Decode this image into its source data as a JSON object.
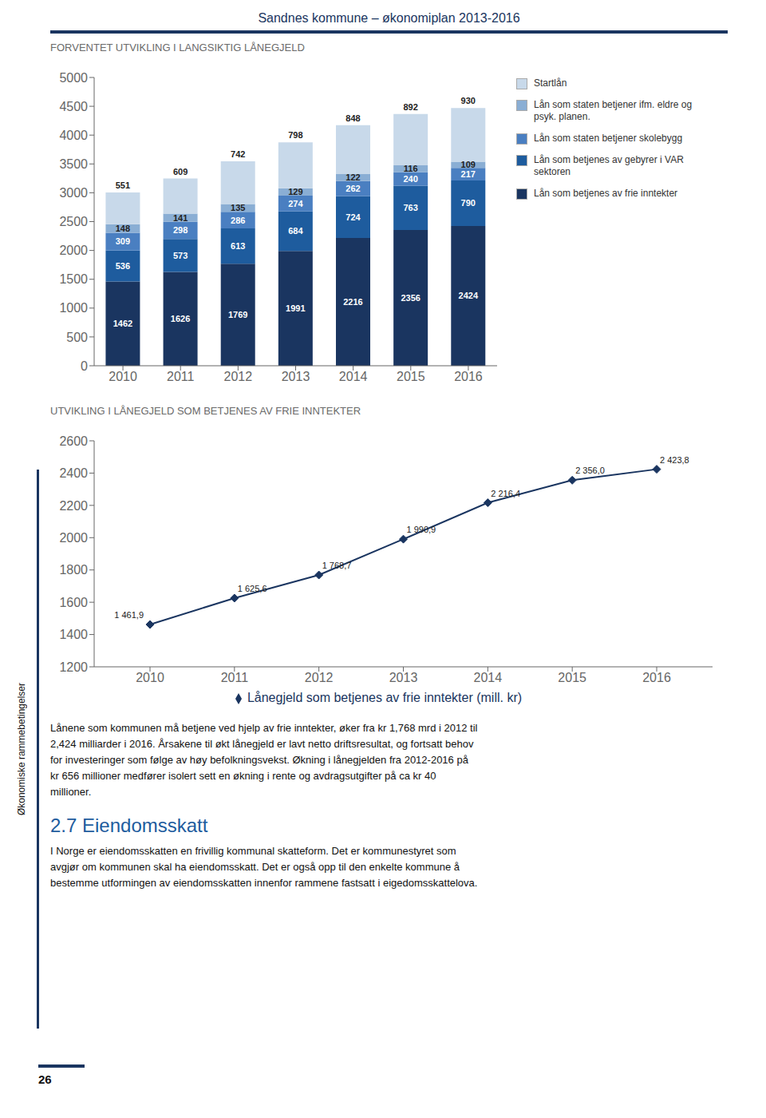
{
  "title": "Sandnes kommune – økonomiplan 2013-2016",
  "annotations": [
    "Lånene som kommunen må betjene ved hjelp av frie inntekter, øker fra kr 1,768 mrd i 2012 til\n2,424 milliarder i 2016. Årsakene til økt lånegjeld er lavt netto driftsresultat, og fortsatt behov\nfor investeringer som følge av høy befolkningsvekst. Økning i lånegjelden fra 2012-2016 på\nkr 656 millioner medfører isolert sett en økning i rente og avdragsutgifter på ca kr 40\nmillioner.",
    "2.7 Eiendomsskatt",
    "I Norge er eiendomsskatten en frivillig kommunal skatteform. Det er kommunestyret som\navgjør om kommunen skal ha eiendomsskatt. Det er også opp til den enkelte kommune å\nbestemme utformingen av eiendomsskatten innenfor rammene fastsatt i eigedomsskattelova.",
    "Økonomiske rammebetingelser",
    "26"
  ],
  "chart_data": [
    {
      "type": "bar",
      "title": "FORVENTET UTVIKLING I LANGSIKTIG LÅNEGJELD",
      "stacked": true,
      "data_labels": true,
      "grid": false,
      "legend": "right",
      "categories": [
        "2010",
        "2011",
        "2012",
        "2013",
        "2014",
        "2015",
        "2016"
      ],
      "series": [
        {
          "name": "Lån som betjenes av frie inntekter",
          "color": "#1a3560",
          "values": [
            1462,
            1626,
            1769,
            1991,
            2216,
            2356,
            2424
          ]
        },
        {
          "name": "Lån som betjenes av gebyrer i VAR\nsektoren",
          "color": "#1e5c9e",
          "values": [
            536,
            573,
            613,
            684,
            724,
            763,
            790
          ]
        },
        {
          "name": "Lån som staten betjener skolebygg",
          "color": "#4a7fc1",
          "values": [
            309,
            298,
            286,
            274,
            262,
            240,
            217
          ]
        },
        {
          "name": "Lån som staten betjener ifm. eldre og\npsyk. planen.",
          "color": "#8aaed4",
          "values": [
            148,
            141,
            135,
            129,
            122,
            116,
            109
          ]
        },
        {
          "name": "Startlån",
          "color": "#c8d9ea",
          "values": [
            551,
            609,
            742,
            798,
            848,
            892,
            930
          ]
        }
      ],
      "ylim": [
        0,
        5000
      ],
      "yticks": [
        0,
        500,
        1000,
        1500,
        2000,
        2500,
        3000,
        3500,
        4000,
        4500,
        5000
      ]
    },
    {
      "type": "line",
      "title": "UTVIKLING I LÅNEGJELD SOM BETJENES AV FRIE INNTEKTER",
      "data_labels": true,
      "grid": false,
      "legend": "bottom",
      "categories": [
        "2010",
        "2011",
        "2012",
        "2013",
        "2014",
        "2015",
        "2016"
      ],
      "series": [
        {
          "name": "Lånegjeld som betjenes av frie inntekter (mill. kr)",
          "color": "#1a3560",
          "marker": "diamond",
          "values": [
            1461.9,
            1625.6,
            1768.7,
            1990.9,
            2216.4,
            2356.0,
            2423.8
          ],
          "value_labels": [
            "1 461,9",
            "1 625,6",
            "1 768,7",
            "1 990,9",
            "2 216,4",
            "2 356,0",
            "2 423,8"
          ]
        }
      ],
      "ylim": [
        1200,
        2600
      ],
      "yticks": [
        1200,
        1400,
        1600,
        1800,
        2000,
        2200,
        2400,
        2600
      ]
    }
  ]
}
